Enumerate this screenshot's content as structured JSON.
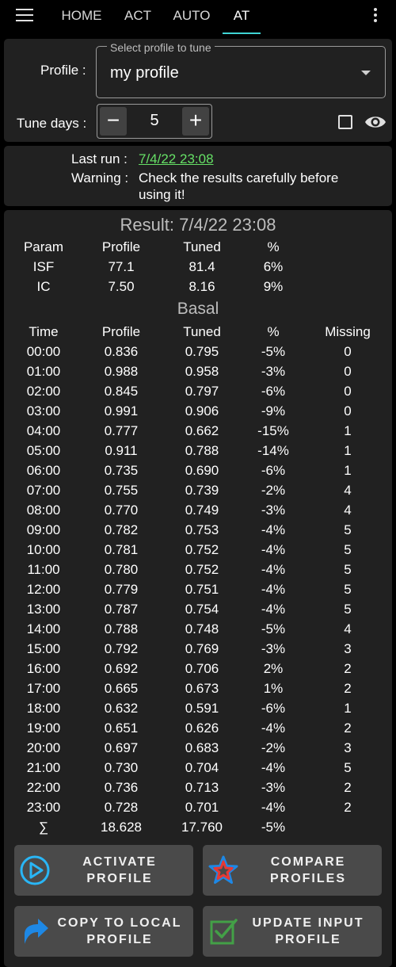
{
  "tabs": [
    {
      "label": "HOME",
      "active": false
    },
    {
      "label": "ACT",
      "active": false
    },
    {
      "label": "AUTO",
      "active": false
    },
    {
      "label": "AT",
      "active": true
    }
  ],
  "profile_section": {
    "profile_label": "Profile :",
    "select_legend": "Select profile to tune",
    "selected_profile": "my profile",
    "tune_days_label": "Tune days :",
    "tune_days_value": "5",
    "minus": "−",
    "plus": "+"
  },
  "info": {
    "last_run_label": "Last run :",
    "last_run_value": "7/4/22 23:08",
    "warning_label": "Warning :",
    "warning_text_1": "Check the results carefully before",
    "warning_text_2": "using it!"
  },
  "result": {
    "title": "Result: 7/4/22 23:08",
    "param_headers": [
      "Param",
      "Profile",
      "Tuned",
      "%"
    ],
    "params": [
      [
        "ISF",
        "77.1",
        "81.4",
        "6%"
      ],
      [
        "IC",
        "7.50",
        "8.16",
        "9%"
      ]
    ],
    "basal_title": "Basal",
    "basal_headers": [
      "Time",
      "Profile",
      "Tuned",
      "%",
      "Missing"
    ],
    "basal_rows": [
      [
        "00:00",
        "0.836",
        "0.795",
        "-5%",
        "0"
      ],
      [
        "01:00",
        "0.988",
        "0.958",
        "-3%",
        "0"
      ],
      [
        "02:00",
        "0.845",
        "0.797",
        "-6%",
        "0"
      ],
      [
        "03:00",
        "0.991",
        "0.906",
        "-9%",
        "0"
      ],
      [
        "04:00",
        "0.777",
        "0.662",
        "-15%",
        "1"
      ],
      [
        "05:00",
        "0.911",
        "0.788",
        "-14%",
        "1"
      ],
      [
        "06:00",
        "0.735",
        "0.690",
        "-6%",
        "1"
      ],
      [
        "07:00",
        "0.755",
        "0.739",
        "-2%",
        "4"
      ],
      [
        "08:00",
        "0.770",
        "0.749",
        "-3%",
        "4"
      ],
      [
        "09:00",
        "0.782",
        "0.753",
        "-4%",
        "5"
      ],
      [
        "10:00",
        "0.781",
        "0.752",
        "-4%",
        "5"
      ],
      [
        "11:00",
        "0.780",
        "0.752",
        "-4%",
        "5"
      ],
      [
        "12:00",
        "0.779",
        "0.751",
        "-4%",
        "5"
      ],
      [
        "13:00",
        "0.787",
        "0.754",
        "-4%",
        "5"
      ],
      [
        "14:00",
        "0.788",
        "0.748",
        "-5%",
        "4"
      ],
      [
        "15:00",
        "0.792",
        "0.769",
        "-3%",
        "3"
      ],
      [
        "16:00",
        "0.692",
        "0.706",
        "2%",
        "2"
      ],
      [
        "17:00",
        "0.665",
        "0.673",
        "1%",
        "2"
      ],
      [
        "18:00",
        "0.632",
        "0.591",
        "-6%",
        "1"
      ],
      [
        "19:00",
        "0.651",
        "0.626",
        "-4%",
        "2"
      ],
      [
        "20:00",
        "0.697",
        "0.683",
        "-2%",
        "3"
      ],
      [
        "21:00",
        "0.730",
        "0.704",
        "-4%",
        "5"
      ],
      [
        "22:00",
        "0.736",
        "0.713",
        "-3%",
        "2"
      ],
      [
        "23:00",
        "0.728",
        "0.701",
        "-4%",
        "2"
      ]
    ],
    "sum_row": [
      "∑",
      "18.628",
      "17.760",
      "-5%",
      ""
    ]
  },
  "buttons": {
    "activate_1": "ACTIVATE",
    "activate_2": "PROFILE",
    "compare_1": "COMPARE",
    "compare_2": "PROFILES",
    "copy_1": "COPY TO LOCAL",
    "copy_2": "PROFILE",
    "update_1": "UPDATE INPUT",
    "update_2": "PROFILE"
  },
  "colors": {
    "accent_tab_underline": "#3fd4d4",
    "link_green": "#66e066",
    "panel_bg": "#212121",
    "button_bg": "#4a4a4a",
    "activate_icon": "#29b6f6",
    "compare_icon_red": "#e53935",
    "compare_icon_blue": "#1e88e5",
    "copy_icon": "#1e88e5",
    "update_icon": "#43a047"
  }
}
